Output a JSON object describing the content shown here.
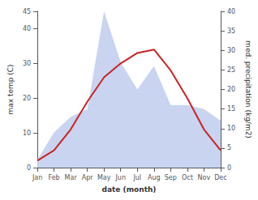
{
  "chart_data": {
    "type": "line",
    "xlabel": "date (month)",
    "ylabel": "max temp (C)",
    "y2label": "med. precipitation (kg/m2)",
    "categories": [
      "Jan",
      "Feb",
      "Mar",
      "Apr",
      "May",
      "Jun",
      "Jul",
      "Aug",
      "Sep",
      "Oct",
      "Nov",
      "Dec"
    ],
    "series": [
      {
        "type": "area",
        "axis": "y2",
        "color": "#c8d4f0",
        "values": [
          2,
          9,
          13,
          15,
          40,
          27,
          20,
          26,
          16,
          16,
          15,
          12
        ]
      },
      {
        "type": "line",
        "color": "#cc2222",
        "values": [
          2,
          5,
          11,
          19,
          26,
          30,
          33,
          34,
          28,
          20,
          11,
          5
        ]
      }
    ],
    "ylim": [
      0,
      45
    ],
    "yticks": [
      0,
      10,
      20,
      30,
      40
    ],
    "y2lim": [
      0,
      40
    ],
    "y2ticks": [
      0,
      5,
      10,
      15,
      20,
      25,
      30,
      35,
      40
    ],
    "grid": false
  }
}
